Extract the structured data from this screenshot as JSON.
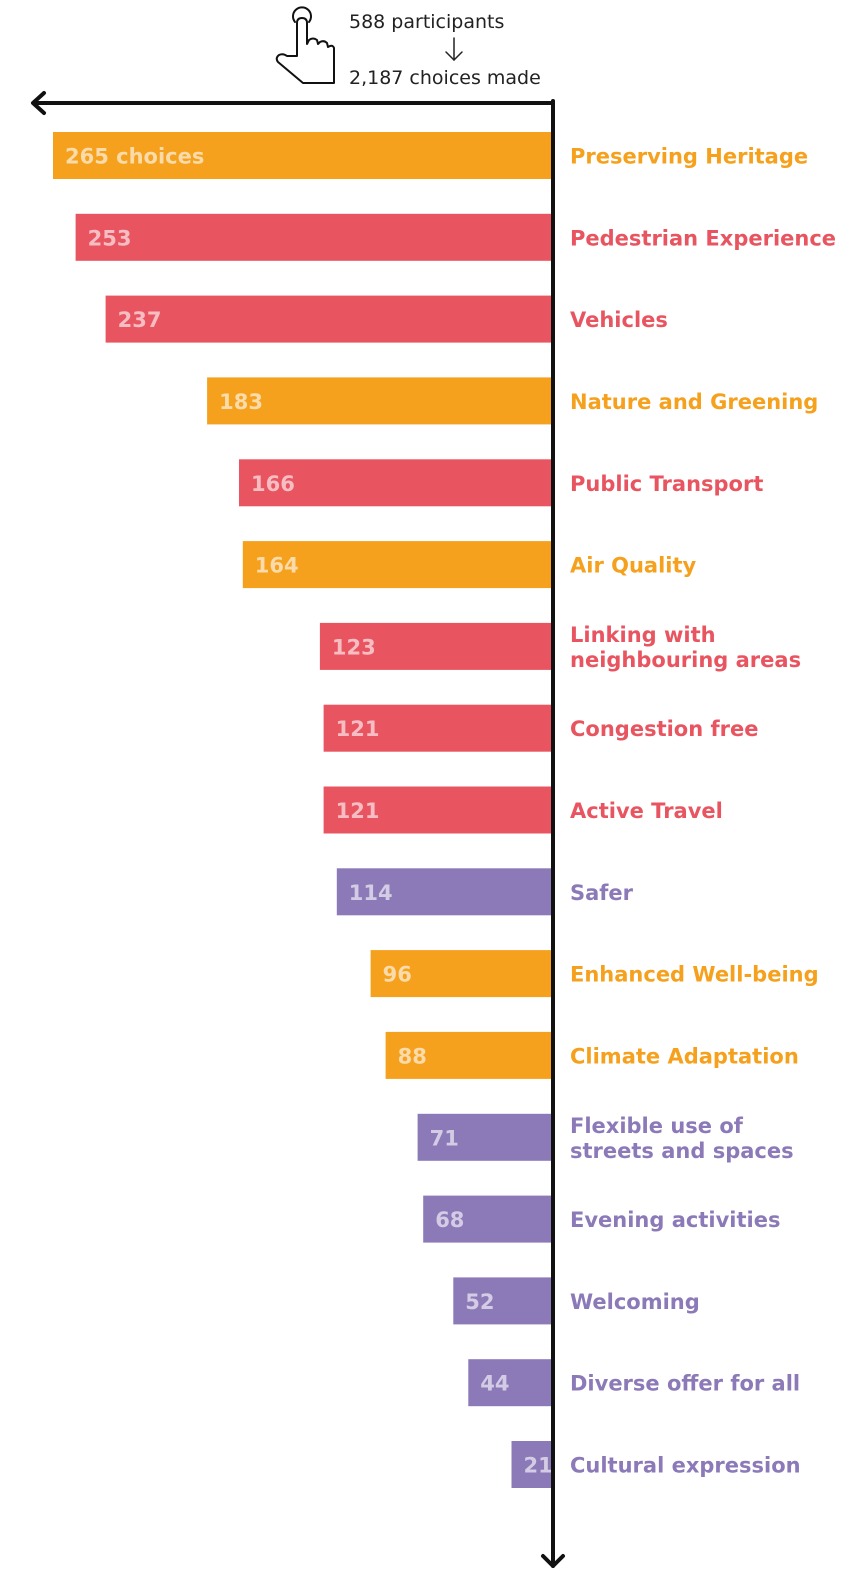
{
  "header": {
    "participants": "588 participants",
    "choices_made": "2,187 choices made",
    "icon": "hand-pointer-icon"
  },
  "colors": {
    "orange": "#F5A11D",
    "red": "#E85561",
    "purple": "#8C79B8",
    "axis": "#111111"
  },
  "chart_data": {
    "type": "bar",
    "orientation": "horizontal",
    "direction": "leftward",
    "legend": "none",
    "grid": false,
    "xlim": [
      0,
      280
    ],
    "value_suffix_first": " choices",
    "categories": [
      "Preserving Heritage",
      "Pedestrian Experience",
      "Vehicles",
      "Nature and Greening",
      "Public Transport",
      "Air Quality",
      "Linking with neighbouring areas",
      "Congestion free",
      "Active Travel",
      "Safer",
      "Enhanced Well-being",
      "Climate Adaptation",
      "Flexible use of streets and spaces",
      "Evening activities",
      "Welcoming",
      "Diverse offer for all",
      "Cultural expression"
    ],
    "label_lines": [
      [
        "Preserving Heritage"
      ],
      [
        "Pedestrian Experience"
      ],
      [
        "Vehicles"
      ],
      [
        "Nature and Greening"
      ],
      [
        "Public Transport"
      ],
      [
        "Air Quality"
      ],
      [
        "Linking with",
        "neighbouring areas"
      ],
      [
        "Congestion free"
      ],
      [
        "Active Travel"
      ],
      [
        "Safer"
      ],
      [
        "Enhanced Well-being"
      ],
      [
        "Climate Adaptation"
      ],
      [
        "Flexible use of",
        "streets and spaces"
      ],
      [
        "Evening activities"
      ],
      [
        "Welcoming"
      ],
      [
        "Diverse offer for all"
      ],
      [
        "Cultural expression"
      ]
    ],
    "values": [
      265,
      253,
      237,
      183,
      166,
      164,
      123,
      121,
      121,
      114,
      96,
      88,
      71,
      68,
      52,
      44,
      21
    ],
    "bar_colors": [
      "orange",
      "red",
      "red",
      "orange",
      "red",
      "orange",
      "red",
      "red",
      "red",
      "purple",
      "orange",
      "orange",
      "purple",
      "purple",
      "purple",
      "purple",
      "purple"
    ]
  }
}
